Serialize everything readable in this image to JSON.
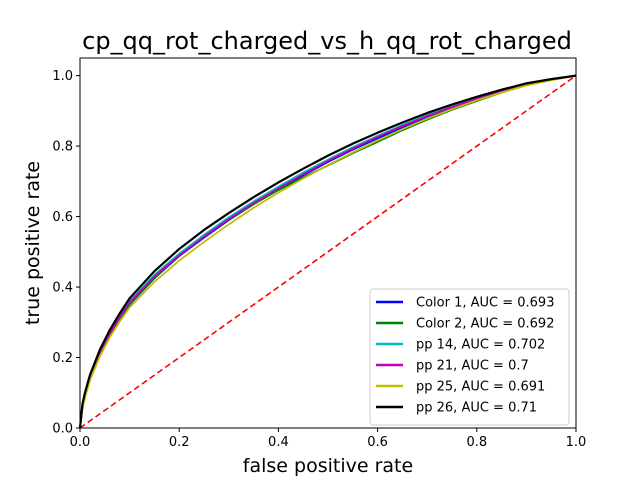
{
  "chart_data": {
    "type": "line",
    "title": "cp_qq_rot_charged_vs_h_qq_rot_charged",
    "xlabel": "false positive rate",
    "ylabel": "true positive rate",
    "xlim": [
      0,
      1
    ],
    "ylim": [
      0,
      1.05
    ],
    "x_ticks": [
      "0.0",
      "0.2",
      "0.4",
      "0.6",
      "0.8",
      "1.0"
    ],
    "y_ticks": [
      "0.0",
      "0.2",
      "0.4",
      "0.6",
      "0.8",
      "1.0"
    ],
    "grid": false,
    "legend_position": "lower-right",
    "diagonal": {
      "color": "#ff0000",
      "style": "dashed",
      "x": [
        0,
        1
      ],
      "y": [
        0,
        1
      ]
    },
    "x": [
      0,
      0.005,
      0.01,
      0.02,
      0.04,
      0.06,
      0.08,
      0.1,
      0.15,
      0.2,
      0.25,
      0.3,
      0.35,
      0.4,
      0.45,
      0.5,
      0.55,
      0.6,
      0.65,
      0.7,
      0.75,
      0.8,
      0.85,
      0.9,
      0.95,
      1.0
    ],
    "series": [
      {
        "name": "Color 1, AUC = 0.693",
        "color": "#0000ff",
        "values": [
          0,
          0.06,
          0.09,
          0.14,
          0.21,
          0.265,
          0.31,
          0.35,
          0.425,
          0.488,
          0.54,
          0.59,
          0.635,
          0.677,
          0.717,
          0.755,
          0.79,
          0.822,
          0.853,
          0.882,
          0.908,
          0.932,
          0.954,
          0.974,
          0.988,
          1.0
        ]
      },
      {
        "name": "Color 2, AUC = 0.692",
        "color": "#008000",
        "values": [
          0,
          0.06,
          0.09,
          0.14,
          0.21,
          0.265,
          0.31,
          0.35,
          0.427,
          0.49,
          0.543,
          0.592,
          0.635,
          0.675,
          0.711,
          0.745,
          0.78,
          0.812,
          0.845,
          0.875,
          0.903,
          0.928,
          0.952,
          0.973,
          0.988,
          1.0
        ]
      },
      {
        "name": "pp 14, AUC = 0.702",
        "color": "#00bfbf",
        "values": [
          0,
          0.065,
          0.095,
          0.145,
          0.218,
          0.272,
          0.318,
          0.36,
          0.435,
          0.495,
          0.548,
          0.598,
          0.643,
          0.685,
          0.725,
          0.762,
          0.797,
          0.829,
          0.86,
          0.888,
          0.913,
          0.936,
          0.957,
          0.976,
          0.989,
          1.0
        ]
      },
      {
        "name": "pp 21, AUC = 0.7",
        "color": "#bf00bf",
        "values": [
          0,
          0.063,
          0.093,
          0.143,
          0.214,
          0.268,
          0.314,
          0.356,
          0.43,
          0.49,
          0.543,
          0.593,
          0.638,
          0.68,
          0.72,
          0.758,
          0.793,
          0.826,
          0.857,
          0.885,
          0.911,
          0.934,
          0.956,
          0.975,
          0.989,
          1.0
        ]
      },
      {
        "name": "pp 25, AUC = 0.691",
        "color": "#bfbf00",
        "values": [
          0,
          0.055,
          0.085,
          0.135,
          0.203,
          0.257,
          0.302,
          0.342,
          0.415,
          0.475,
          0.528,
          0.578,
          0.625,
          0.668,
          0.708,
          0.746,
          0.782,
          0.816,
          0.848,
          0.878,
          0.905,
          0.93,
          0.952,
          0.972,
          0.987,
          1.0
        ]
      },
      {
        "name": "pp 26, AUC = 0.71",
        "color": "#000000",
        "values": [
          0,
          0.068,
          0.1,
          0.15,
          0.222,
          0.278,
          0.325,
          0.368,
          0.445,
          0.508,
          0.562,
          0.61,
          0.655,
          0.697,
          0.736,
          0.773,
          0.807,
          0.838,
          0.867,
          0.894,
          0.918,
          0.94,
          0.96,
          0.978,
          0.99,
          1.0
        ]
      }
    ]
  }
}
